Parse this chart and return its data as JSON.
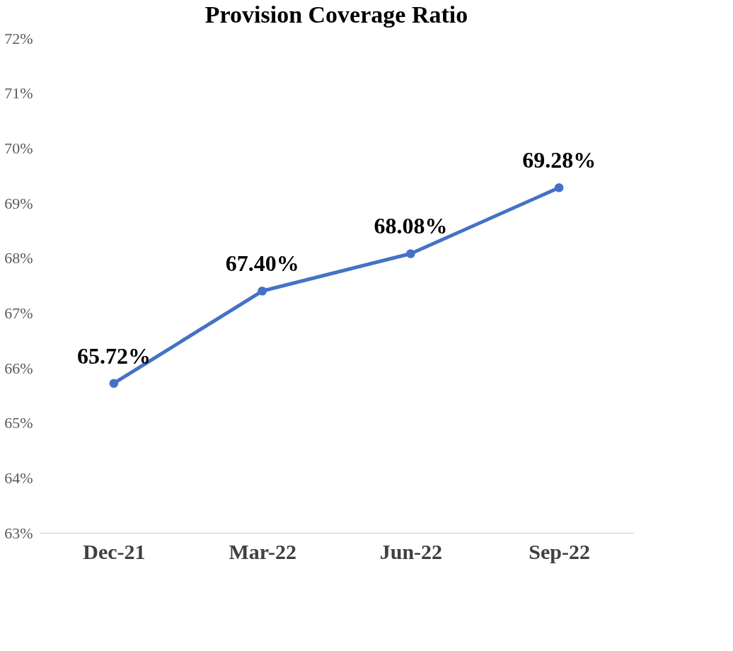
{
  "chart_data": {
    "type": "line",
    "title": "Provision Coverage Ratio",
    "categories": [
      "Dec-21",
      "Mar-22",
      "Jun-22",
      "Sep-22"
    ],
    "series": [
      {
        "color": "#4472c4",
        "values": [
          65.72,
          67.4,
          68.08,
          69.28
        ],
        "value_labels": [
          "65.72%",
          "67.40%",
          "68.08%",
          "69.28%"
        ]
      }
    ],
    "ylim": [
      63,
      72
    ],
    "yticks": [
      {
        "value": 63,
        "label": "63%"
      },
      {
        "value": 64,
        "label": "64%"
      },
      {
        "value": 65,
        "label": "65%"
      },
      {
        "value": 66,
        "label": "66%"
      },
      {
        "value": 67,
        "label": "67%"
      },
      {
        "value": 68,
        "label": "68%"
      },
      {
        "value": 69,
        "label": "69%"
      },
      {
        "value": 70,
        "label": "70%"
      },
      {
        "value": 71,
        "label": "71%"
      },
      {
        "value": 72,
        "label": "72%"
      }
    ],
    "grid": false,
    "marker": "circle",
    "line_style": "solid"
  }
}
